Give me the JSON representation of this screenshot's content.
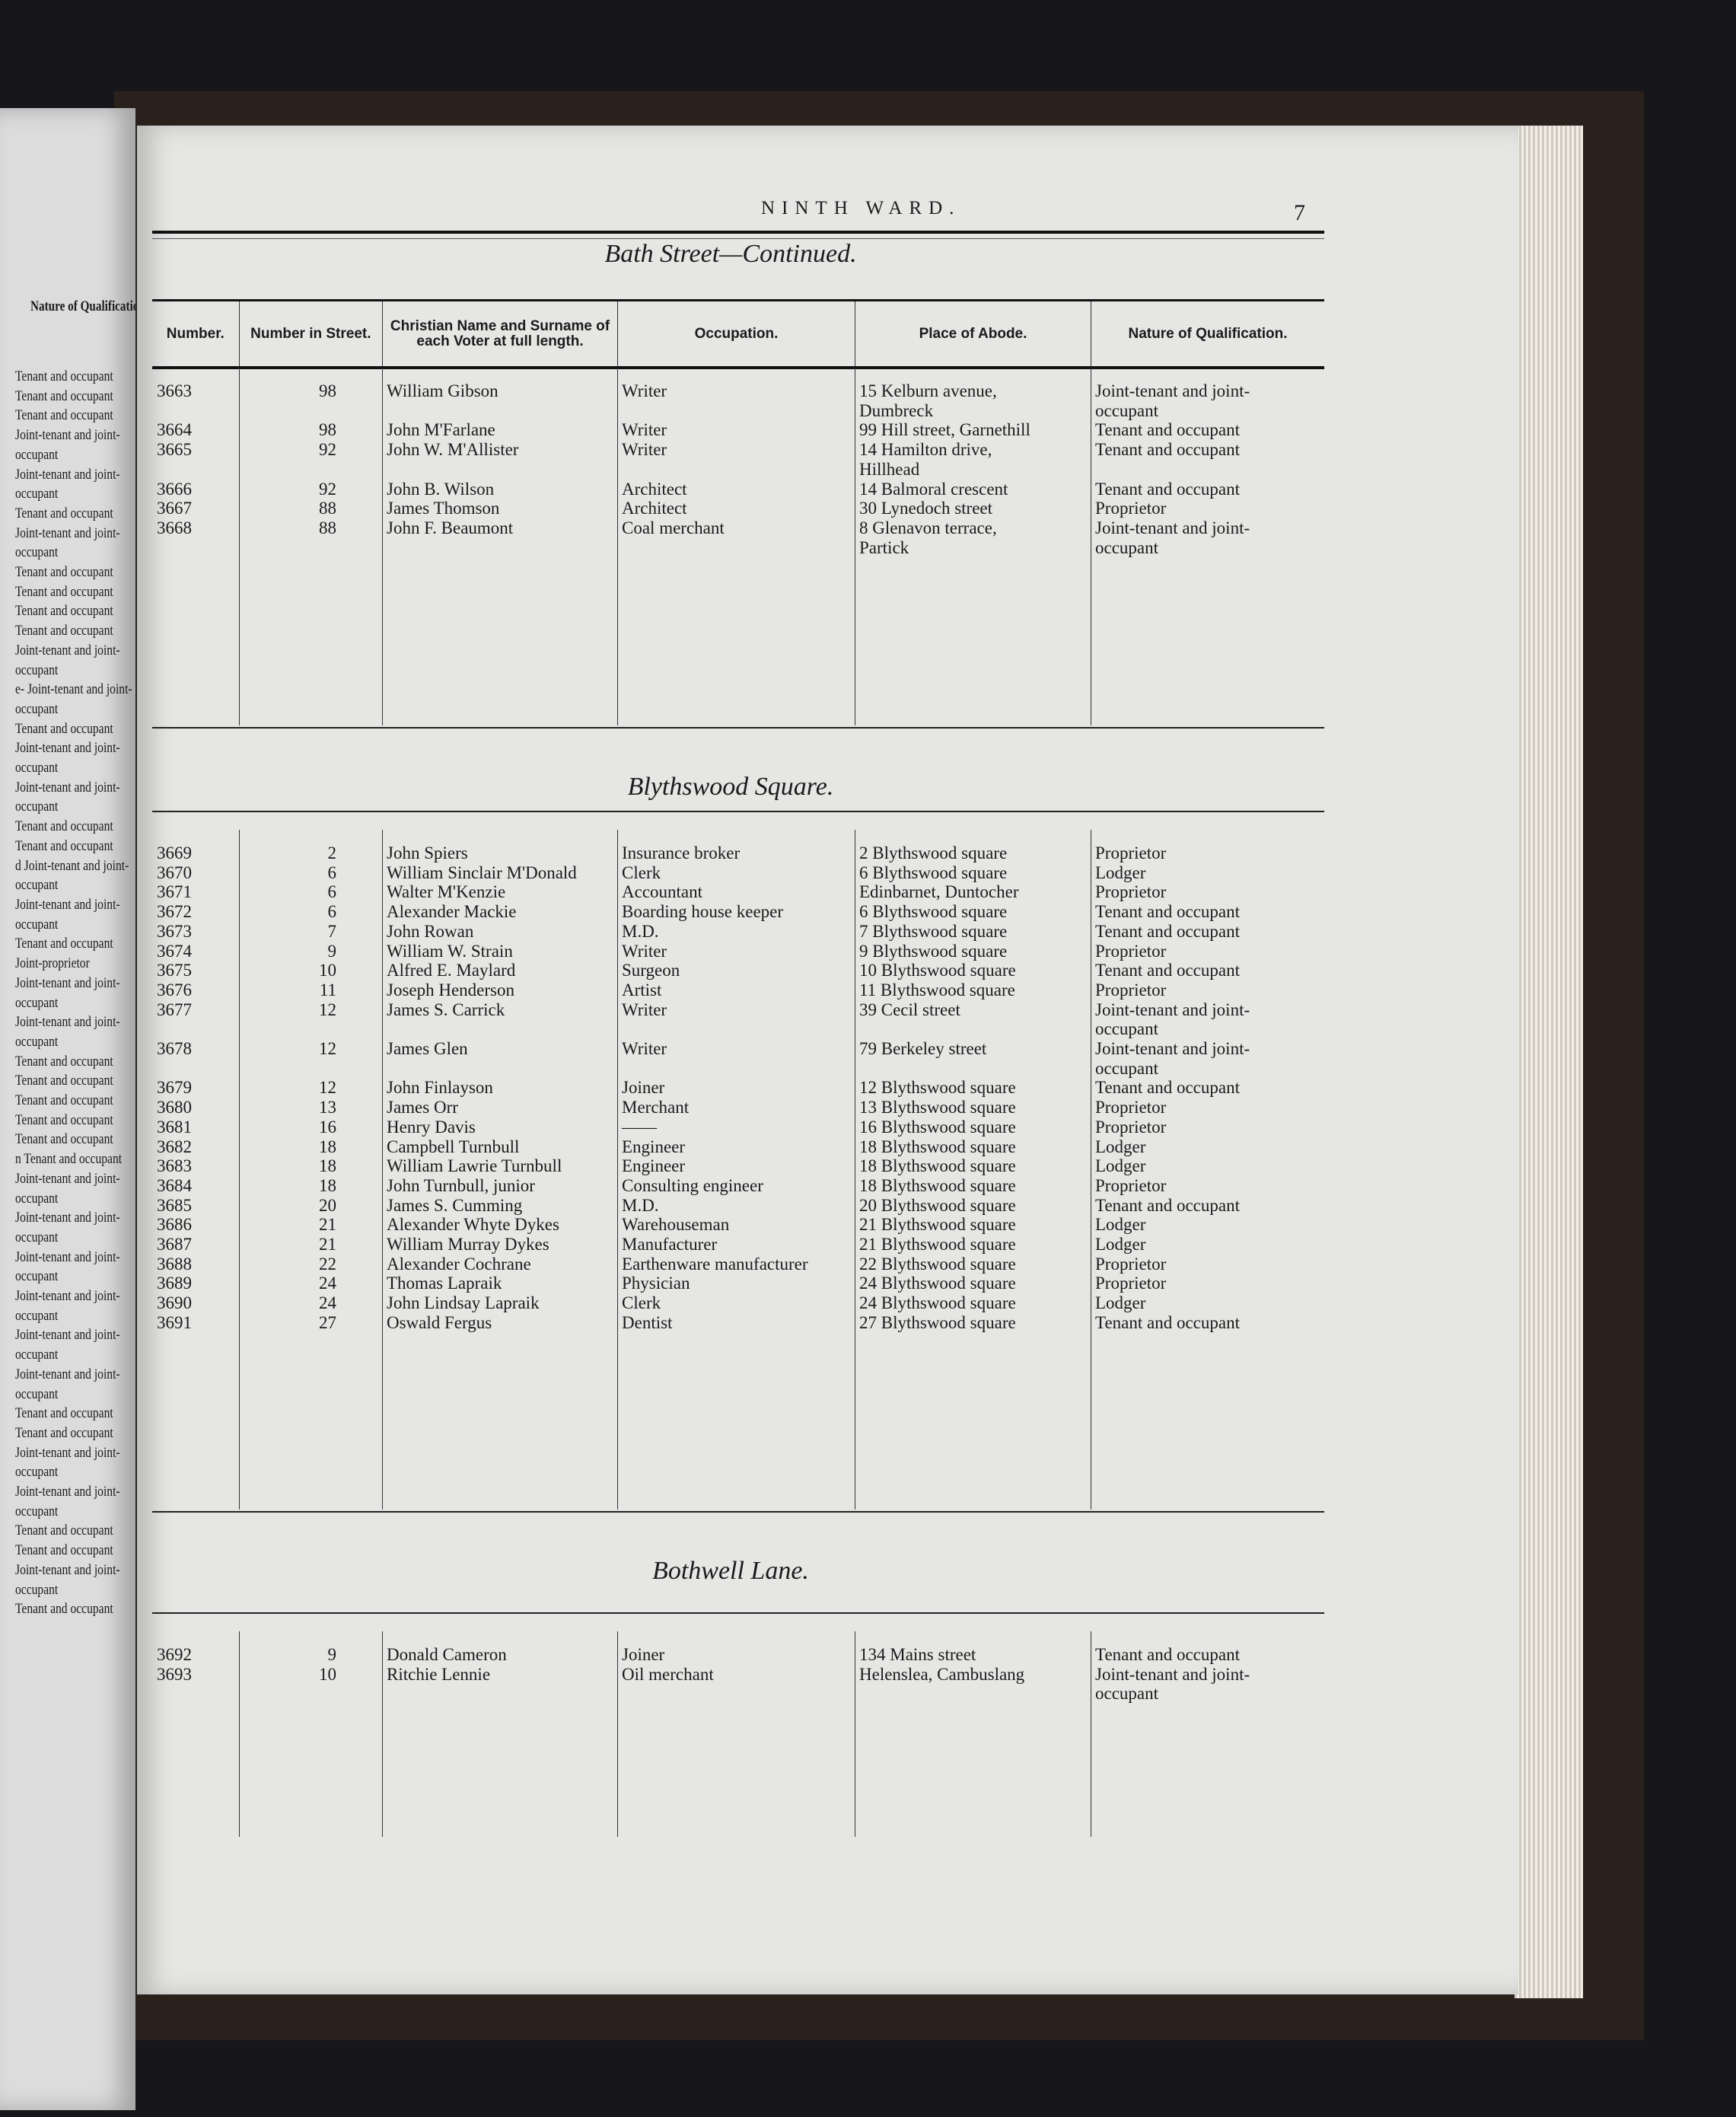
{
  "running_head": "NINTH WARD.",
  "page_number": "7",
  "columns": [
    "Number.",
    "Number in Street.",
    "Christian Name and Surname of each Voter at full length.",
    "Occupation.",
    "Place of Abode.",
    "Nature of Qualification."
  ],
  "left_page": {
    "header": "Nature of Qualification.",
    "items": [
      "Tenant and occupant",
      "Tenant and occupant",
      "",
      "Tenant and occupant",
      "Joint-tenant and joint-",
      "occupant",
      "Joint-tenant and joint-",
      "occupant",
      "Tenant and occupant",
      "Joint-tenant and joint-",
      "occupant",
      "Tenant and occupant",
      "Tenant and occupant",
      "Tenant and occupant",
      "Tenant and occupant",
      "Joint-tenant and joint-",
      "occupant",
      "e- Joint-tenant and joint-",
      "occupant",
      "Tenant and occupant",
      "Joint-tenant and joint-",
      "occupant",
      "Joint-tenant and joint-",
      "occupant",
      "Tenant and occupant",
      "Tenant and occupant",
      "d Joint-tenant and joint-",
      "occupant",
      "Joint-tenant and joint-",
      "occupant",
      "Tenant and occupant",
      "",
      "",
      "Joint-proprietor",
      "Joint-tenant and joint-",
      "occupant",
      "Joint-tenant and joint-",
      "occupant",
      "Tenant and occupant",
      "Tenant and occupant",
      "Tenant and occupant",
      "",
      "Tenant and occupant",
      "Tenant and occupant",
      "n Tenant and occupant",
      "Joint-tenant and joint-",
      "occupant",
      "Joint-tenant and joint-",
      "occupant",
      "Joint-tenant and joint-",
      "occupant",
      "Joint-tenant and joint-",
      "occupant",
      "Joint-tenant and joint-",
      "occupant",
      "Joint-tenant and joint-",
      "occupant",
      "Tenant and occupant",
      "Tenant and occupant",
      "Joint-tenant and joint-",
      "occupant",
      "Joint-tenant and joint-",
      "occupant",
      "Tenant and occupant",
      "",
      "Tenant and occupant",
      "Joint-tenant and joint-",
      "occupant",
      "Tenant and occupant"
    ]
  },
  "sections": [
    {
      "title": "Bath Street—Continued.",
      "rows": [
        [
          "3663",
          "98",
          "William Gibson",
          "Writer",
          "15 Kelburn avenue,\n      Dumbreck",
          "Joint-tenant and joint-\n      occupant"
        ],
        [
          "3664",
          "98",
          "John M'Farlane",
          "Writer",
          "99 Hill street, Garnethill",
          "Tenant and occupant"
        ],
        [
          "3665",
          "92",
          "John W. M'Allister",
          "Writer",
          "14 Hamilton drive,\n      Hillhead",
          "Tenant and occupant\n "
        ],
        [
          "3666",
          "92",
          "John B. Wilson",
          "Architect",
          "14 Balmoral crescent",
          "Tenant and occupant"
        ],
        [
          "3667",
          "88",
          "James Thomson",
          "Architect",
          "30 Lynedoch street",
          "Proprietor"
        ],
        [
          "3668",
          "88",
          "John F. Beaumont",
          "Coal merchant",
          "  8 Glenavon terrace,\n      Partick",
          "Joint-tenant and joint-\n      occupant"
        ]
      ]
    },
    {
      "title": "Blythswood Square.",
      "rows": [
        [
          "3669",
          "2",
          "John Spiers",
          "Insurance broker",
          "  2 Blythswood square",
          "Proprietor"
        ],
        [
          "3670",
          "6",
          "William Sinclair M'Donald",
          "Clerk",
          "  6 Blythswood square",
          "Lodger"
        ],
        [
          "3671",
          "6",
          "Walter M'Kenzie",
          "Accountant",
          "   Edinbarnet, Duntocher",
          "Proprietor"
        ],
        [
          "3672",
          "6",
          "Alexander Mackie",
          "Boarding house keeper",
          "  6 Blythswood square",
          "Tenant and occupant"
        ],
        [
          "3673",
          "7",
          "John Rowan",
          "M.D.",
          "  7 Blythswood square",
          "Tenant and occupant"
        ],
        [
          "3674",
          "9",
          "William W. Strain",
          "Writer",
          "  9 Blythswood square",
          "Proprietor"
        ],
        [
          "3675",
          "10",
          "Alfred E. Maylard",
          "Surgeon",
          "10 Blythswood square",
          "Tenant and occupant"
        ],
        [
          "3676",
          "11",
          "Joseph Henderson",
          "Artist",
          "11 Blythswood square",
          "Proprietor"
        ],
        [
          "3677",
          "12",
          "James S. Carrick",
          "Writer",
          "39 Cecil street",
          "Joint-tenant and joint-\n      occupant"
        ],
        [
          "3678",
          "12",
          "James Glen",
          "Writer",
          "79 Berkeley street",
          "Joint-tenant and joint-\n      occupant"
        ],
        [
          "3679",
          "12",
          "John Finlayson",
          "Joiner",
          "12 Blythswood square",
          "Tenant and occupant"
        ],
        [
          "3680",
          "13",
          "James Orr",
          "Merchant",
          "13 Blythswood square",
          "Proprietor"
        ],
        [
          "3681",
          "16",
          "Henry Davis",
          "          ——",
          "16 Blythswood square",
          "Proprietor"
        ],
        [
          "3682",
          "18",
          "Campbell Turnbull",
          "Engineer",
          "18 Blythswood square",
          "Lodger"
        ],
        [
          "3683",
          "18",
          "William Lawrie Turnbull",
          "Engineer",
          "18 Blythswood square",
          "Lodger"
        ],
        [
          "3684",
          "18",
          "John Turnbull, junior",
          "Consulting engineer",
          "18 Blythswood square",
          "Proprietor"
        ],
        [
          "3685",
          "20",
          "James S. Cumming",
          "M.D.",
          "20 Blythswood square",
          "Tenant and occupant"
        ],
        [
          "3686",
          "21",
          "Alexander Whyte Dykes",
          "Warehouseman",
          "21 Blythswood square",
          "Lodger"
        ],
        [
          "3687",
          "21",
          "William Murray Dykes",
          "Manufacturer",
          "21 Blythswood square",
          "Lodger"
        ],
        [
          "3688",
          "22",
          "Alexander Cochrane",
          "Earthenware manufacturer",
          "22 Blythswood square",
          "Proprietor"
        ],
        [
          "3689",
          "24",
          "Thomas Lapraik",
          "Physician",
          "24 Blythswood square",
          "Proprietor"
        ],
        [
          "3690",
          "24",
          "John Lindsay Lapraik",
          "Clerk",
          "24 Blythswood square",
          "Lodger"
        ],
        [
          "3691",
          "27",
          "Oswald Fergus",
          "Dentist",
          "27 Blythswood square",
          "Tenant and occupant"
        ]
      ]
    },
    {
      "title": "Bothwell Lane.",
      "rows": [
        [
          "3692",
          "9",
          "Donald Cameron",
          "Joiner",
          "134 Mains street",
          "Tenant and occupant"
        ],
        [
          "3693",
          "10",
          "Ritchie Lennie",
          "Oil merchant",
          "    Helenslea, Cambuslang",
          "Joint-tenant and joint-\n      occupant"
        ]
      ]
    }
  ]
}
